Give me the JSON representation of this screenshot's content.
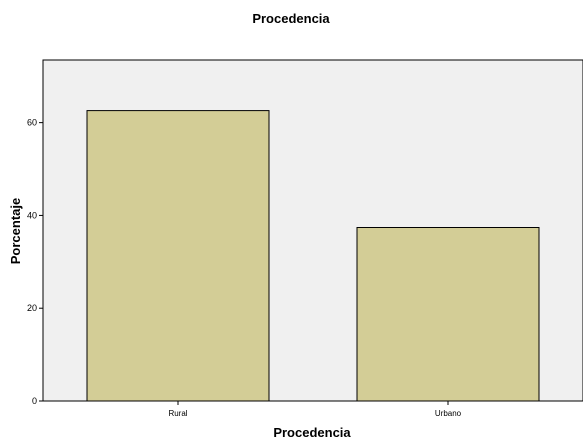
{
  "chart_data": {
    "type": "bar",
    "title": "Procedencia",
    "xlabel": "Procedencia",
    "ylabel": "Porcentaje",
    "categories": [
      "Rural",
      "Urbano"
    ],
    "values": [
      62.6,
      37.4
    ],
    "ylim": [
      0,
      73.5
    ],
    "yticks": [
      0,
      20,
      40,
      60
    ],
    "grid": false,
    "legend": "none",
    "colors": {
      "plot_background": "#f0f0f0",
      "bar_fill": "#d3cd96",
      "bar_stroke": "#000000"
    }
  }
}
